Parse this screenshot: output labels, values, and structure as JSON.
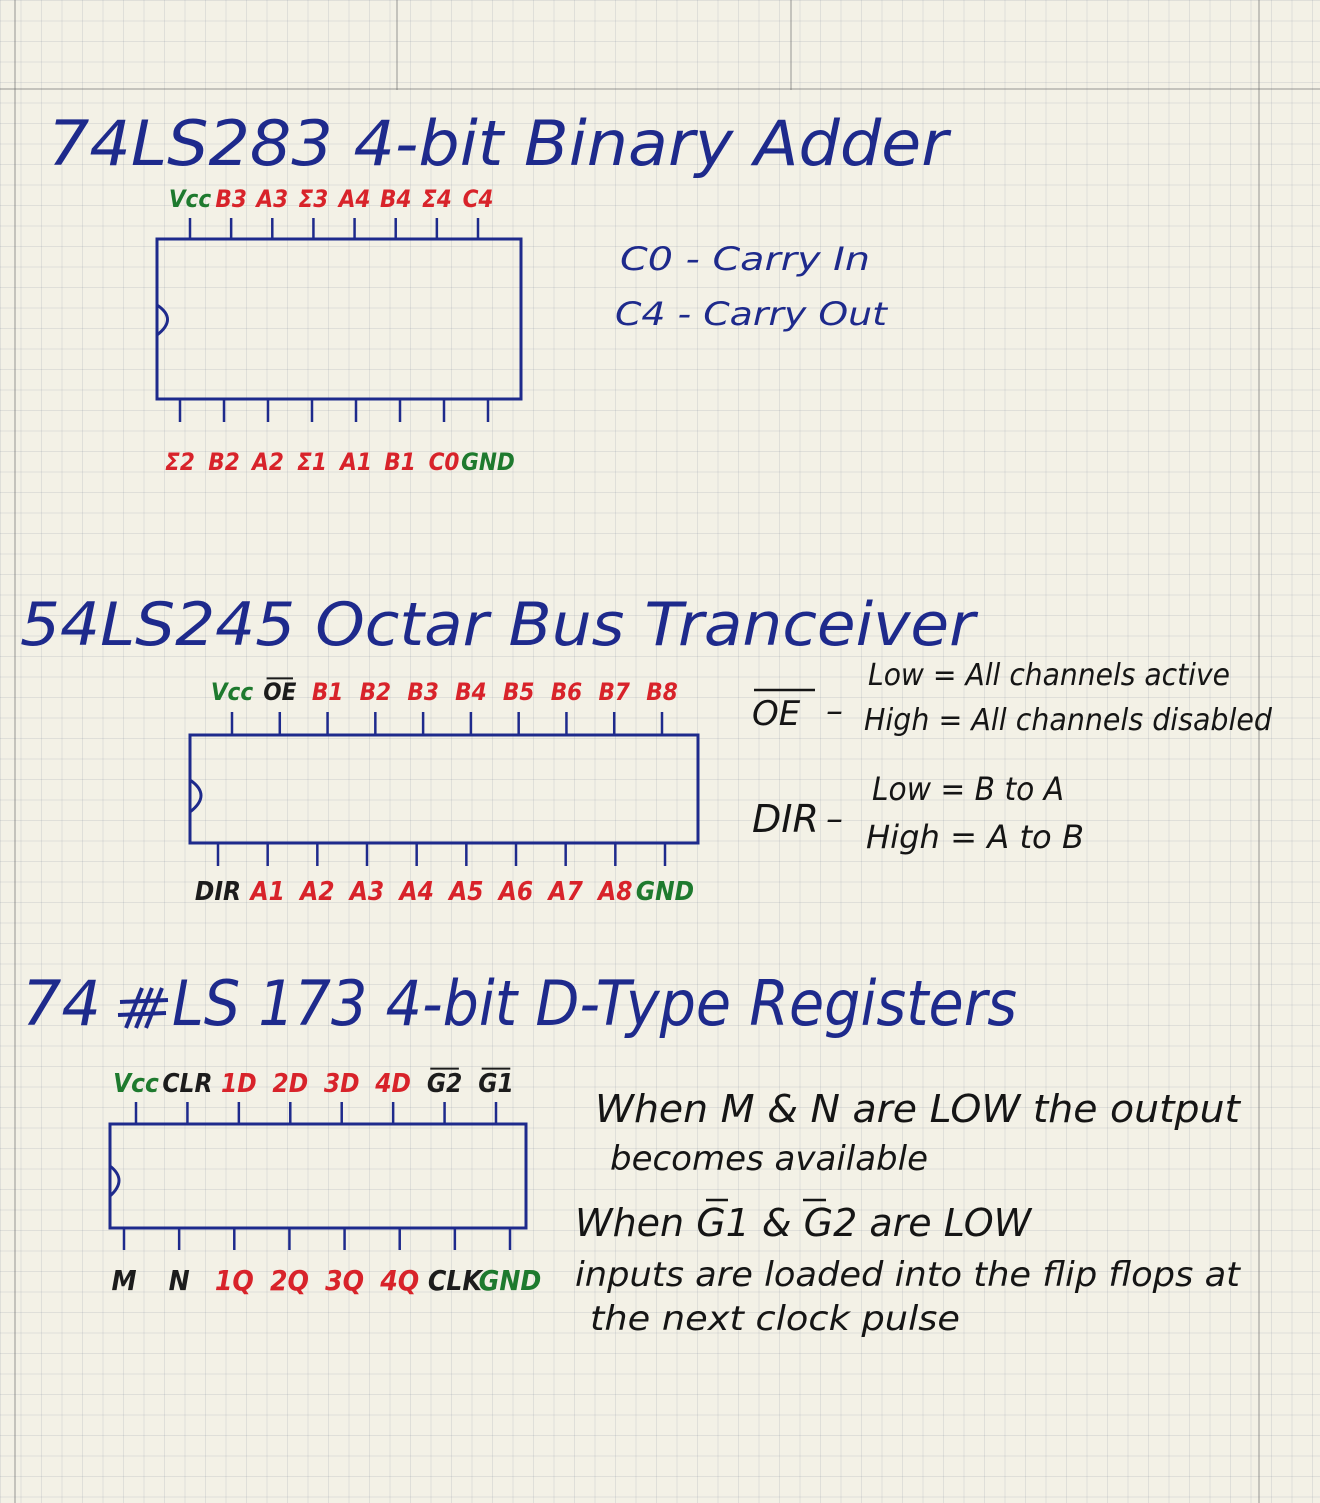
{
  "chips": [
    {
      "id": "adder",
      "title": "74LS283 4-bit Binary Adder",
      "top_pins": [
        {
          "label": "Vcc",
          "color": "green"
        },
        {
          "label": "B3",
          "color": "red"
        },
        {
          "label": "A3",
          "color": "red"
        },
        {
          "label": "Σ3",
          "color": "red"
        },
        {
          "label": "A4",
          "color": "red"
        },
        {
          "label": "B4",
          "color": "red"
        },
        {
          "label": "Σ4",
          "color": "red"
        },
        {
          "label": "C4",
          "color": "red"
        }
      ],
      "bottom_pins": [
        {
          "label": "Σ2",
          "color": "red"
        },
        {
          "label": "B2",
          "color": "red"
        },
        {
          "label": "A2",
          "color": "red"
        },
        {
          "label": "Σ1",
          "color": "red"
        },
        {
          "label": "A1",
          "color": "red"
        },
        {
          "label": "B1",
          "color": "red"
        },
        {
          "label": "C0",
          "color": "red"
        },
        {
          "label": "GND",
          "color": "green"
        }
      ],
      "notes": [
        "C0 - Carry In",
        "C4 - Carry Out"
      ]
    },
    {
      "id": "transceiver",
      "title": "54LS245 Octar Bus Tranceiver",
      "top_pins": [
        {
          "label": "Vcc",
          "color": "green"
        },
        {
          "label": "OE",
          "color": "black",
          "overline": true
        },
        {
          "label": "B1",
          "color": "red"
        },
        {
          "label": "B2",
          "color": "red"
        },
        {
          "label": "B3",
          "color": "red"
        },
        {
          "label": "B4",
          "color": "red"
        },
        {
          "label": "B5",
          "color": "red"
        },
        {
          "label": "B6",
          "color": "red"
        },
        {
          "label": "B7",
          "color": "red"
        },
        {
          "label": "B8",
          "color": "red"
        }
      ],
      "bottom_pins": [
        {
          "label": "DIR",
          "color": "black"
        },
        {
          "label": "A1",
          "color": "red"
        },
        {
          "label": "A2",
          "color": "red"
        },
        {
          "label": "A3",
          "color": "red"
        },
        {
          "label": "A4",
          "color": "red"
        },
        {
          "label": "A5",
          "color": "red"
        },
        {
          "label": "A6",
          "color": "red"
        },
        {
          "label": "A7",
          "color": "red"
        },
        {
          "label": "A8",
          "color": "red"
        },
        {
          "label": "GND",
          "color": "green"
        }
      ],
      "notes": {
        "oe_label": "OE",
        "oe_low": "Low = All channels active",
        "oe_high": "High = All channels disabled",
        "dir_label": "DIR",
        "dir_low": "Low = B to A",
        "dir_high": "High = A to B"
      }
    },
    {
      "id": "register",
      "title": "74LS 173 4-bit D-Type Registers",
      "title_prefix": "74",
      "title_rest": "LS 173 4-bit D-Type Registers",
      "top_pins": [
        {
          "label": "Vcc",
          "color": "green"
        },
        {
          "label": "CLR",
          "color": "black"
        },
        {
          "label": "1D",
          "color": "red"
        },
        {
          "label": "2D",
          "color": "red"
        },
        {
          "label": "3D",
          "color": "red"
        },
        {
          "label": "4D",
          "color": "red"
        },
        {
          "label": "G2",
          "color": "black",
          "overline": true
        },
        {
          "label": "G1",
          "color": "black",
          "overline": true
        }
      ],
      "bottom_pins": [
        {
          "label": "M",
          "color": "black"
        },
        {
          "label": "N",
          "color": "black"
        },
        {
          "label": "1Q",
          "color": "red"
        },
        {
          "label": "2Q",
          "color": "red"
        },
        {
          "label": "3Q",
          "color": "red"
        },
        {
          "label": "4Q",
          "color": "red"
        },
        {
          "label": "CLK",
          "color": "black"
        },
        {
          "label": "GND",
          "color": "green"
        }
      ],
      "notes": {
        "line1": "When M & N are LOW the output",
        "line2": "becomes available",
        "line3_a": "When ",
        "line3_g1": "G1",
        "line3_b": " & ",
        "line3_g2": "G2",
        "line3_c": " are LOW",
        "line4": "inputs are loaded into the flip flops at",
        "line5": "the next clock pulse"
      }
    }
  ],
  "colors": {
    "ink_blue": "#1e2a8c",
    "ink_red": "#d8232a",
    "ink_green": "#1e7a2e",
    "ink_black": "#1c1c1c"
  }
}
